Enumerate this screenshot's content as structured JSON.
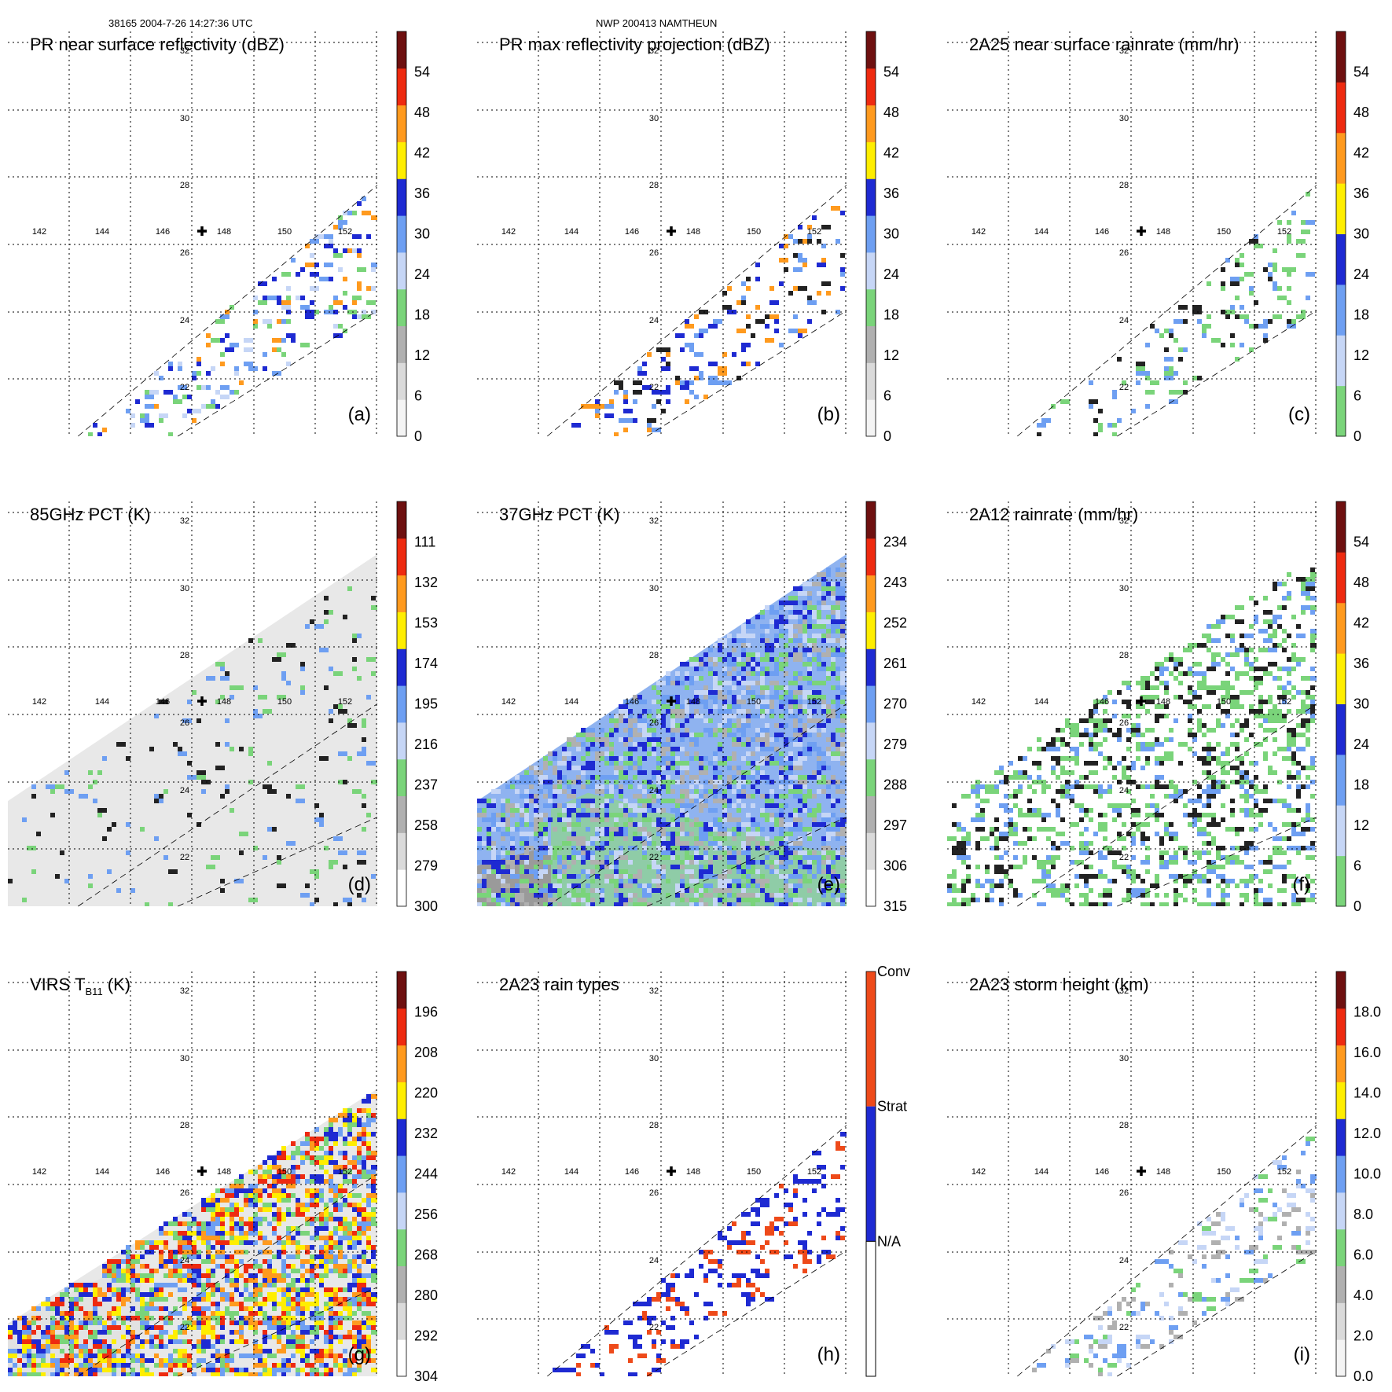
{
  "header": {
    "left": "38165 2004-7-26 14:27:36 UTC",
    "right": "NWP 200413 NAMTHEUN"
  },
  "colors": {
    "lightgray": "#e6e6e6",
    "gray": "#b0b0b0",
    "green": "#7ad47a",
    "lightblue": "#c6d6f6",
    "blue": "#6e9ff2",
    "darkblue": "#1e2ad2",
    "yellow": "#ffee00",
    "orange": "#ff9a1e",
    "red": "#ee2a10",
    "darkred": "#6e1010"
  },
  "grid": {
    "lon_labels": [
      "142",
      "144",
      "146",
      "148",
      "150",
      "152"
    ],
    "lat_labels": [
      "32",
      "30",
      "28",
      "26",
      "24",
      "22"
    ]
  },
  "chart_data": [
    {
      "id": "a",
      "type": "heatmap",
      "title": "PR near surface reflectivity (dBZ)",
      "panel_label": "(a)",
      "swath": "pr",
      "colorbar": {
        "labels": [
          "0",
          "6",
          "12",
          "18",
          "24",
          "30",
          "36",
          "42",
          "48",
          "54"
        ],
        "units": "dBZ"
      },
      "field": {
        "density": 0.18,
        "colors": [
          "#6e9ff2",
          "#1e2ad2",
          "#c6d6f6",
          "#7ad47a",
          "#ff9a1e"
        ]
      }
    },
    {
      "id": "b",
      "type": "heatmap",
      "title": "PR max reflectivity projection (dBZ)",
      "panel_label": "(b)",
      "swath": "pr",
      "colorbar": {
        "labels": [
          "0",
          "6",
          "12",
          "18",
          "24",
          "30",
          "36",
          "42",
          "48",
          "54"
        ],
        "units": "dBZ"
      },
      "field": {
        "density": 0.14,
        "colors": [
          "#1e2ad2",
          "#6e9ff2",
          "#ff9a1e",
          "#222222"
        ]
      }
    },
    {
      "id": "c",
      "type": "heatmap",
      "title": "2A25 near surface rainrate (mm/hr)",
      "panel_label": "(c)",
      "swath": "pr",
      "colorbar": {
        "labels": [
          "0",
          "6",
          "12",
          "18",
          "24",
          "30",
          "36",
          "42",
          "48",
          "54"
        ],
        "units": "mm/hr"
      },
      "field": {
        "density": 0.13,
        "colors": [
          "#7ad47a",
          "#222222",
          "#7ad47a",
          "#6e9ff2"
        ]
      }
    },
    {
      "id": "d",
      "type": "heatmap",
      "title": "85GHz PCT (K)",
      "panel_label": "(d)",
      "swath": "tmi",
      "colorbar": {
        "labels": [
          "300",
          "279",
          "258",
          "237",
          "216",
          "195",
          "174",
          "153",
          "132",
          "111"
        ],
        "units": "K"
      },
      "field": {
        "background": "#e8e8e8",
        "density": 0.06,
        "colors": [
          "#7ad47a",
          "#6e9ff2",
          "#222222"
        ]
      }
    },
    {
      "id": "e",
      "type": "heatmap",
      "title": "37GHz PCT (K)",
      "panel_label": "(e)",
      "swath": "tmi",
      "colorbar": {
        "labels": [
          "315",
          "306",
          "297",
          "288",
          "279",
          "270",
          "261",
          "252",
          "243",
          "234"
        ],
        "units": "K"
      },
      "field": {
        "background": "#8fb3f0",
        "density": 0.5,
        "colors": [
          "#6e9ff2",
          "#1e2ad2",
          "#c6d6f6",
          "#7ad47a",
          "#b0b0b0"
        ]
      }
    },
    {
      "id": "f",
      "type": "heatmap",
      "title": "2A12 rainrate (mm/hr)",
      "panel_label": "(f)",
      "swath": "tmi",
      "colorbar": {
        "labels": [
          "0",
          "6",
          "12",
          "18",
          "24",
          "30",
          "36",
          "42",
          "48",
          "54"
        ],
        "units": "mm/hr"
      },
      "field": {
        "background": "#ffffff",
        "density": 0.3,
        "colors": [
          "#7ad47a",
          "#7ad47a",
          "#6e9ff2",
          "#222222"
        ]
      }
    },
    {
      "id": "g",
      "type": "heatmap",
      "title": "VIRS T",
      "title_sub": "B11",
      "title_end": " (K)",
      "panel_label": "(g)",
      "swath": "virs",
      "colorbar": {
        "labels": [
          "304",
          "292",
          "280",
          "268",
          "256",
          "244",
          "232",
          "220",
          "208",
          "196"
        ],
        "units": "K"
      },
      "field": {
        "background": "#e8e8e8",
        "density": 0.55,
        "colors": [
          "#ff9a1e",
          "#ee2a10",
          "#6e9ff2",
          "#7ad47a",
          "#ffee00",
          "#1e2ad2"
        ]
      }
    },
    {
      "id": "h",
      "type": "heatmap",
      "title": "2A23 rain types",
      "panel_label": "(h)",
      "swath": "pr",
      "colorbar": {
        "labels": [
          "N/A",
          "Strat",
          "Conv"
        ],
        "units": ""
      },
      "field": {
        "density": 0.18,
        "colors": [
          "#1e2ad2",
          "#1e2ad2",
          "#ee4a1a"
        ]
      }
    },
    {
      "id": "i",
      "type": "heatmap",
      "title": "2A23 storm height (km)",
      "panel_label": "(i)",
      "swath": "pr",
      "colorbar": {
        "labels": [
          "0.0",
          "2.0",
          "4.0",
          "6.0",
          "8.0",
          "10.0",
          "12.0",
          "14.0",
          "16.0",
          "18.0"
        ],
        "units": "km"
      },
      "field": {
        "density": 0.16,
        "colors": [
          "#b0b0b0",
          "#7ad47a",
          "#c6d6f6",
          "#6e9ff2"
        ]
      }
    }
  ]
}
